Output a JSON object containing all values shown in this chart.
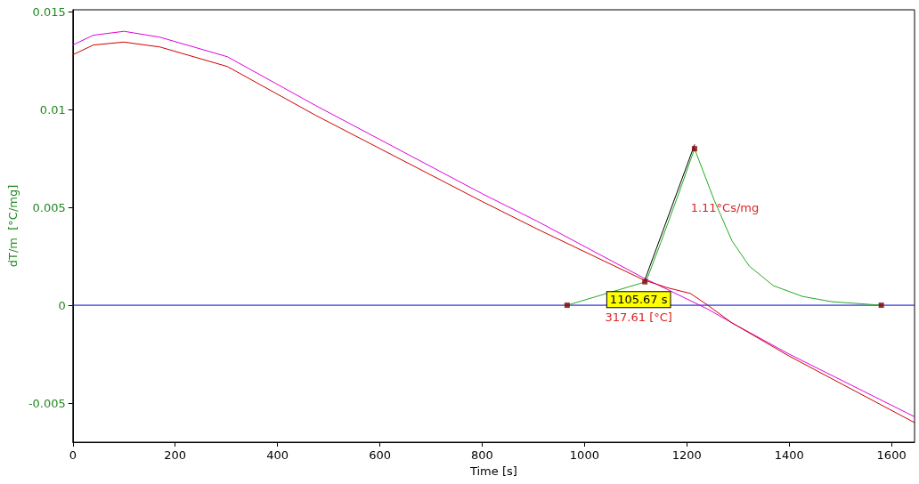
{
  "chart_data": {
    "type": "line",
    "xlabel": "Time [s]",
    "ylabel": "dT/m  [°C/mg]",
    "xlim": [
      0,
      1645
    ],
    "ylim": [
      -0.007,
      0.0151
    ],
    "xticks": [
      0,
      200,
      400,
      600,
      800,
      {
        "value": 1000,
        "label": "1000"
      },
      {
        "value": 1200,
        "label": "1200"
      },
      {
        "value": 1400,
        "label": "1400"
      },
      {
        "value": 1600,
        "label": "1600"
      }
    ],
    "yticks": [
      -0.005,
      0,
      0.005,
      0.01,
      0.015
    ],
    "grid": false,
    "marker": "none",
    "line_style": "solid",
    "ref_lines": [
      {
        "axis": "y",
        "value": 0,
        "color": "#0000cc"
      }
    ],
    "series": [
      {
        "color": "#dd00dd",
        "x": [
          0,
          40,
          100,
          170,
          302,
          475,
          800,
          907,
          1115,
          1241,
          1288,
          1400,
          1645
        ],
        "values": [
          0.0133,
          0.0138,
          0.014,
          0.0137,
          0.0127,
          0.0102,
          0.0057,
          0.0043,
          0.0014,
          -0.0002,
          -0.0009,
          -0.0025,
          -0.0057
        ]
      },
      {
        "color": "#cc0000",
        "x": [
          0,
          40,
          100,
          170,
          302,
          475,
          800,
          907,
          1115,
          1161,
          1207,
          1241,
          1288,
          1400,
          1645
        ],
        "values": [
          0.0128,
          0.0133,
          0.01345,
          0.0132,
          0.0122,
          0.0097,
          0.0053,
          0.0039,
          0.0013,
          0.0009,
          0.0006,
          0.0,
          -0.0009,
          -0.0026,
          -0.006
        ]
      },
      {
        "color": "#22aa22",
        "x": [
          966,
          1120,
          1149,
          1184,
          1215,
          1253,
          1288,
          1322,
          1369,
          1426,
          1483,
          1580
        ],
        "values": [
          0,
          0.0012,
          0.0032,
          0.0057,
          0.008,
          0.0054,
          0.0033,
          0.002,
          0.001,
          0.00045,
          0.00018,
          0
        ]
      },
      {
        "color": "#000000",
        "x": [
          1118,
          1215
        ],
        "values": [
          0.0013,
          0.0082
        ]
      },
      {
        "type": "scatter",
        "color": "#800000",
        "marker": "square",
        "x": [
          966,
          1118,
          1215,
          1580
        ],
        "values": [
          0,
          0.0012,
          0.008,
          0
        ]
      }
    ],
    "annotations": [
      "1105.67 s",
      "317.61 [°C]",
      "1.11°Cs/mg"
    ]
  }
}
